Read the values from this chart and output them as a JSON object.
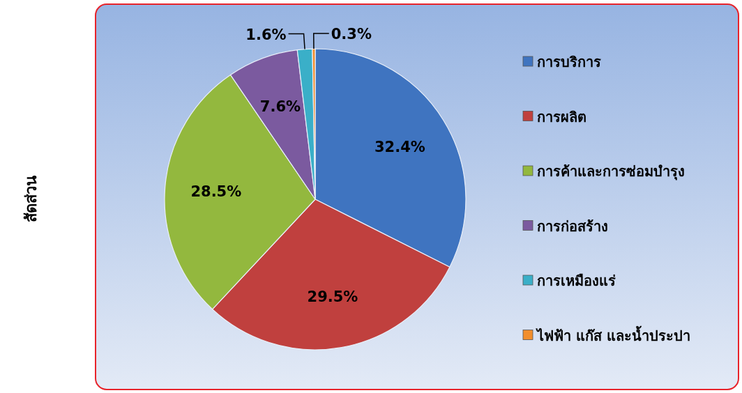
{
  "chart_data": {
    "type": "pie",
    "ylabel": "สัดส่วน",
    "categories": [
      "การบริการ",
      "การผลิต",
      "การค้าและการซ่อมบำรุง",
      "การก่อสร้าง",
      "การเหมืองแร่",
      "ไฟฟ้า แก๊ส และน้ำประปา"
    ],
    "values": [
      32.4,
      29.5,
      28.5,
      7.6,
      1.6,
      0.3
    ],
    "colors": [
      "#3f74c0",
      "#c0403e",
      "#93b83e",
      "#7b5a9f",
      "#3aafc8",
      "#f28e2c"
    ],
    "value_labels": [
      "32.4%",
      "29.5%",
      "28.5%",
      "7.6%",
      "1.6%",
      "0.3%"
    ],
    "legend": "right"
  }
}
